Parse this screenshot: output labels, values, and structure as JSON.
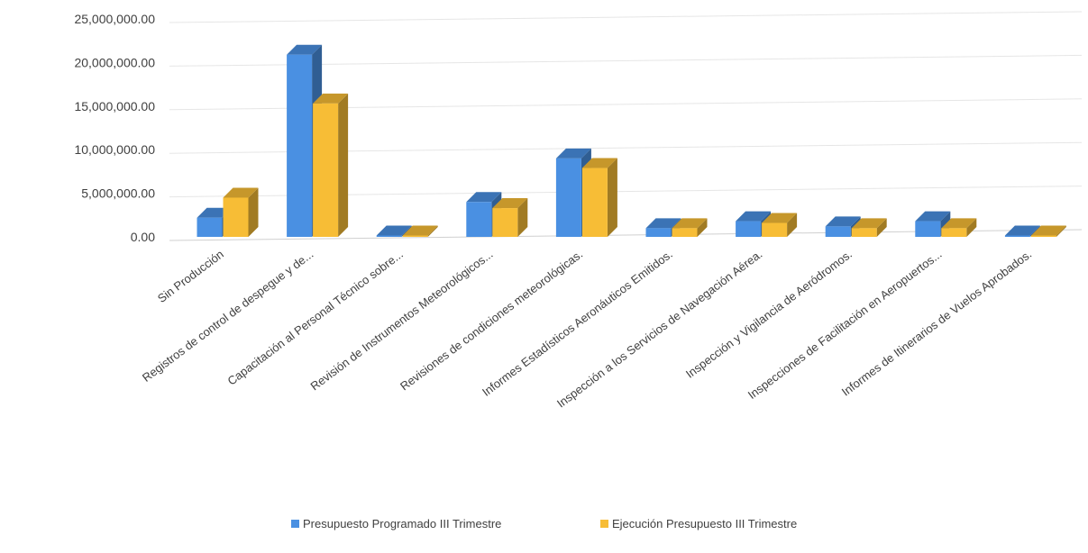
{
  "chart_data": {
    "type": "bar",
    "title": "",
    "xlabel": "",
    "ylabel": "",
    "ylim": [
      0,
      25000000
    ],
    "yticks": [
      0,
      5000000,
      10000000,
      15000000,
      20000000,
      25000000
    ],
    "ytick_labels": [
      "0.00",
      "5,000,000.00",
      "10,000,000.00",
      "15,000,000.00",
      "20,000,000.00",
      "25,000,000.00"
    ],
    "grid": true,
    "legend_position": "bottom",
    "style": "3d-clustered-column",
    "categories": [
      "Sin Producción",
      "Registros de control de despegue y de...",
      "Capacitación al Personal Técnico sobre...",
      "Revisión de Instrumentos Meteorológicos...",
      "Revisiones de condiciones meteorológicas.",
      "Informes Estadísticos Aeronáuticos Emitidos.",
      "Inspección a los Servicios de Navegación Aérea.",
      "Inspección y Vigilancia de Aeródromos.",
      "Inspecciones de Facilitación en Aeropuertos...",
      "Informes de Itinerarios de Vuelos Aprobados."
    ],
    "series": [
      {
        "name": "Presupuesto Programado III Trimestre",
        "color": "#4a90e2",
        "values": [
          2200000,
          20900000,
          0,
          4000000,
          9000000,
          1000000,
          1800000,
          1200000,
          1800000,
          0
        ]
      },
      {
        "name": "Ejecución Presupuesto III Trimestre",
        "color": "#f7bd36",
        "values": [
          4500000,
          15300000,
          0,
          3300000,
          7900000,
          1000000,
          1600000,
          1000000,
          1000000,
          0
        ]
      }
    ]
  }
}
